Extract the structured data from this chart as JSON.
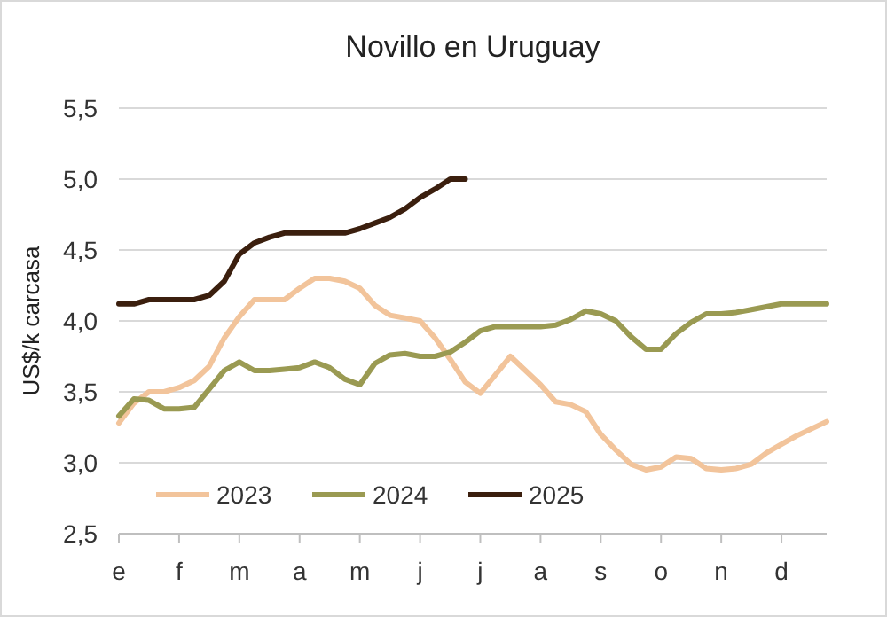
{
  "chart_data": {
    "type": "line",
    "title": "Novillo en Uruguay",
    "ylabel": "US$/k carcasa",
    "categories": [
      "e",
      null,
      null,
      null,
      "f",
      null,
      null,
      null,
      "m",
      null,
      null,
      null,
      "a",
      null,
      null,
      null,
      "m",
      null,
      null,
      null,
      "j",
      null,
      null,
      null,
      "j",
      null,
      null,
      null,
      "a",
      null,
      null,
      null,
      "s",
      null,
      null,
      null,
      "o",
      null,
      null,
      null,
      "n",
      null,
      null,
      null,
      "d",
      null,
      null,
      null
    ],
    "ylim": [
      2.5,
      5.5
    ],
    "yticks": [
      {
        "value": 2.5,
        "label": "2,5"
      },
      {
        "value": 3,
        "label": "3,0"
      },
      {
        "value": 3.5,
        "label": "3,5"
      },
      {
        "value": 4,
        "label": "4,0"
      },
      {
        "value": 4.5,
        "label": "4,5"
      },
      {
        "value": 5,
        "label": "5,0"
      },
      {
        "value": 5.5,
        "label": "5,5"
      }
    ],
    "grid": "y",
    "legend": "bottom",
    "line_style": "solid",
    "marker": "none",
    "series": [
      {
        "name": "2023",
        "color": "#f2c49b",
        "values": [
          3.28,
          3.42,
          3.5,
          3.5,
          3.53,
          3.58,
          3.68,
          3.88,
          4.03,
          4.15,
          4.15,
          4.15,
          4.23,
          4.3,
          4.3,
          4.28,
          4.23,
          4.11,
          4.04,
          4.02,
          4.0,
          3.88,
          3.73,
          3.57,
          3.49,
          3.62,
          3.75,
          3.65,
          3.55,
          3.43,
          3.41,
          3.36,
          3.2,
          3.09,
          2.99,
          2.95,
          2.97,
          3.04,
          3.03,
          2.96,
          2.95,
          2.96,
          2.99,
          3.07,
          3.13,
          3.19,
          3.24,
          3.29
        ]
      },
      {
        "name": "2024",
        "color": "#9a9a52",
        "values": [
          3.33,
          3.45,
          3.44,
          3.38,
          3.38,
          3.39,
          3.52,
          3.65,
          3.71,
          3.65,
          3.65,
          3.66,
          3.67,
          3.71,
          3.67,
          3.59,
          3.55,
          3.7,
          3.76,
          3.77,
          3.75,
          3.75,
          3.78,
          3.85,
          3.93,
          3.96,
          3.96,
          3.96,
          3.96,
          3.97,
          4.01,
          4.07,
          4.05,
          4.0,
          3.89,
          3.8,
          3.8,
          3.91,
          3.99,
          4.05,
          4.05,
          4.06,
          4.08,
          4.1,
          4.12,
          4.12,
          4.12,
          4.12
        ]
      },
      {
        "name": "2025",
        "color": "#3b1f0e",
        "values": [
          4.12,
          4.12,
          4.15,
          4.15,
          4.15,
          4.15,
          4.18,
          4.28,
          4.47,
          4.55,
          4.59,
          4.62,
          4.62,
          4.62,
          4.62,
          4.62,
          4.65,
          4.69,
          4.73,
          4.79,
          4.87,
          4.93,
          5.0,
          5.0,
          null,
          null,
          null,
          null,
          null,
          null,
          null,
          null,
          null,
          null,
          null,
          null,
          null,
          null,
          null,
          null,
          null,
          null,
          null,
          null,
          null,
          null,
          null,
          null
        ]
      }
    ]
  }
}
